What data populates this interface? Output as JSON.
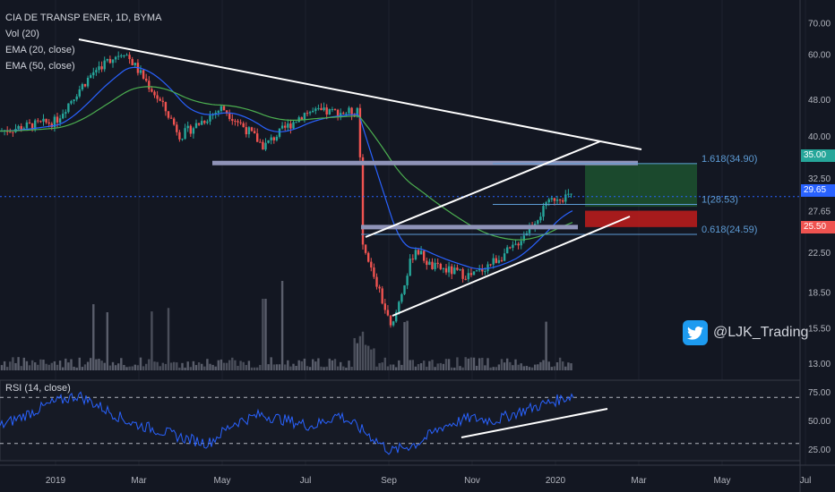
{
  "legend": {
    "symbol": "CIA DE TRANSP ENER, 1D, BYMA",
    "vol": "Vol (20)",
    "ema20": "EMA (20, close)",
    "ema50": "EMA (50, close)",
    "rsi": "RSI (14, close)"
  },
  "watermark": {
    "handle": "@LJK_Trading",
    "icon": "twitter-bird-icon"
  },
  "price_axis": {
    "ticks": [
      "70.00",
      "60.00",
      "48.00",
      "40.00",
      "32.50",
      "27.65",
      "22.50",
      "18.50",
      "15.50",
      "13.00"
    ],
    "badges": [
      {
        "label": "35.00",
        "color": "#26a69a"
      },
      {
        "label": "29.65",
        "color": "#2962ff"
      },
      {
        "label": "25.50",
        "color": "#ef5350"
      }
    ]
  },
  "rsi_axis": {
    "ticks": [
      "75.00",
      "50.00",
      "25.00"
    ]
  },
  "time_axis": {
    "ticks": [
      "2019",
      "Mar",
      "May",
      "Jul",
      "Sep",
      "Nov",
      "2020",
      "Mar",
      "May",
      "Jul"
    ]
  },
  "fib_labels": {
    "f1618": "1.618(34.90)",
    "f1": "1(28.53)",
    "f0618": "0.618(24.59)"
  },
  "colors": {
    "background": "#131722",
    "up": "#26a69a",
    "down": "#ef5350",
    "ema20": "#2962ff",
    "ema50": "#4caf50",
    "rsi": "#2962ff",
    "trendline": "#ffffff",
    "target_zone": "#1e5631",
    "stop_zone": "#b71c1c",
    "level": "#8a8fc5"
  },
  "chart_data": {
    "type": "candlestick",
    "title": "CIA DE TRANSP ENER, 1D, BYMA",
    "price_scale": "log",
    "ylim": [
      12.5,
      75
    ],
    "last_price": 29.65,
    "key_levels": [
      35.0,
      29.65,
      27.65,
      25.5
    ],
    "fibonacci": [
      {
        "ratio": 1.618,
        "price": 34.9
      },
      {
        "ratio": 1,
        "price": 28.53
      },
      {
        "ratio": 0.618,
        "price": 24.59
      }
    ],
    "price_path": [
      {
        "date": "2019-01",
        "close": 43
      },
      {
        "date": "2019-02",
        "close": 56
      },
      {
        "date": "2019-02-20",
        "close": 61
      },
      {
        "date": "2019-03",
        "close": 55
      },
      {
        "date": "2019-04",
        "close": 40
      },
      {
        "date": "2019-05",
        "close": 46
      },
      {
        "date": "2019-06",
        "close": 38
      },
      {
        "date": "2019-07",
        "close": 45
      },
      {
        "date": "2019-08-09",
        "close": 45
      },
      {
        "date": "2019-08-12",
        "close": 23
      },
      {
        "date": "2019-09-03",
        "close": 15.2
      },
      {
        "date": "2019-09-20",
        "close": 23
      },
      {
        "date": "2019-10",
        "close": 21
      },
      {
        "date": "2019-11",
        "close": 20
      },
      {
        "date": "2019-12",
        "close": 23
      },
      {
        "date": "2020-01",
        "close": 29.65
      }
    ],
    "rsi": {
      "name": "RSI (14, close)",
      "ylim": [
        15,
        85
      ],
      "bands": [
        70,
        30
      ],
      "path": [
        45,
        55,
        65,
        72,
        60,
        48,
        42,
        35,
        30,
        48,
        55,
        50,
        45,
        55,
        40,
        23,
        30,
        45,
        52,
        50,
        58,
        65,
        72
      ]
    }
  }
}
